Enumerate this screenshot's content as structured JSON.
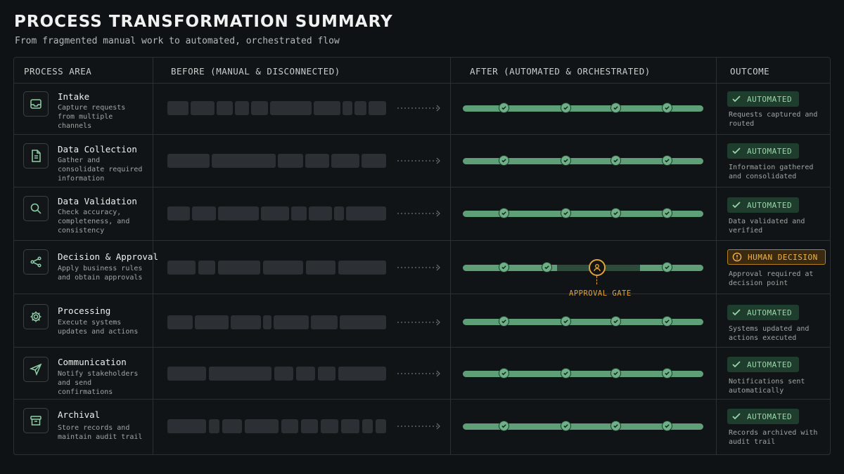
{
  "title": "PROCESS TRANSFORMATION SUMMARY",
  "subtitle": "From fragmented manual work to automated, orchestrated flow",
  "headers": {
    "area": "PROCESS AREA",
    "before": "BEFORE (MANUAL & DISCONNECTED)",
    "after": "AFTER (AUTOMATED & ORCHESTRATED)",
    "outcome": "OUTCOME"
  },
  "colors": {
    "background": "#0f1214",
    "pipeline": "#5f9f78",
    "automated_badge": "#1f3d2c",
    "human_badge": "#e3a33a",
    "manual_block": "#2c3034"
  },
  "rows": [
    {
      "name": "Intake",
      "icon": "inbox-icon",
      "desc": "Capture requests from multiple channels",
      "status": "AUTOMATED",
      "outcome": "Requests captured and routed"
    },
    {
      "name": "Data Collection",
      "icon": "document-icon",
      "desc": "Gather and consolidate required information",
      "status": "AUTOMATED",
      "outcome": "Information gathered and consolidated"
    },
    {
      "name": "Data Validation",
      "icon": "search-icon",
      "desc": "Check accuracy, completeness, and consistency",
      "status": "AUTOMATED",
      "outcome": "Data validated and verified"
    },
    {
      "name": "Decision & Approval",
      "icon": "share-icon",
      "desc": "Apply business rules and obtain approvals",
      "status": "HUMAN DECISION",
      "outcome": "Approval required at decision point",
      "gate_label": "APPROVAL GATE"
    },
    {
      "name": "Processing",
      "icon": "gear-icon",
      "desc": "Execute systems updates and actions",
      "status": "AUTOMATED",
      "outcome": "Systems updated and actions executed"
    },
    {
      "name": "Communication",
      "icon": "send-icon",
      "desc": "Notify stakeholders and send confirmations",
      "status": "AUTOMATED",
      "outcome": "Notifications sent automatically"
    },
    {
      "name": "Archival",
      "icon": "archive-icon",
      "desc": "Store records and maintain audit trail",
      "status": "AUTOMATED",
      "outcome": "Records archived with audit trail"
    }
  ]
}
